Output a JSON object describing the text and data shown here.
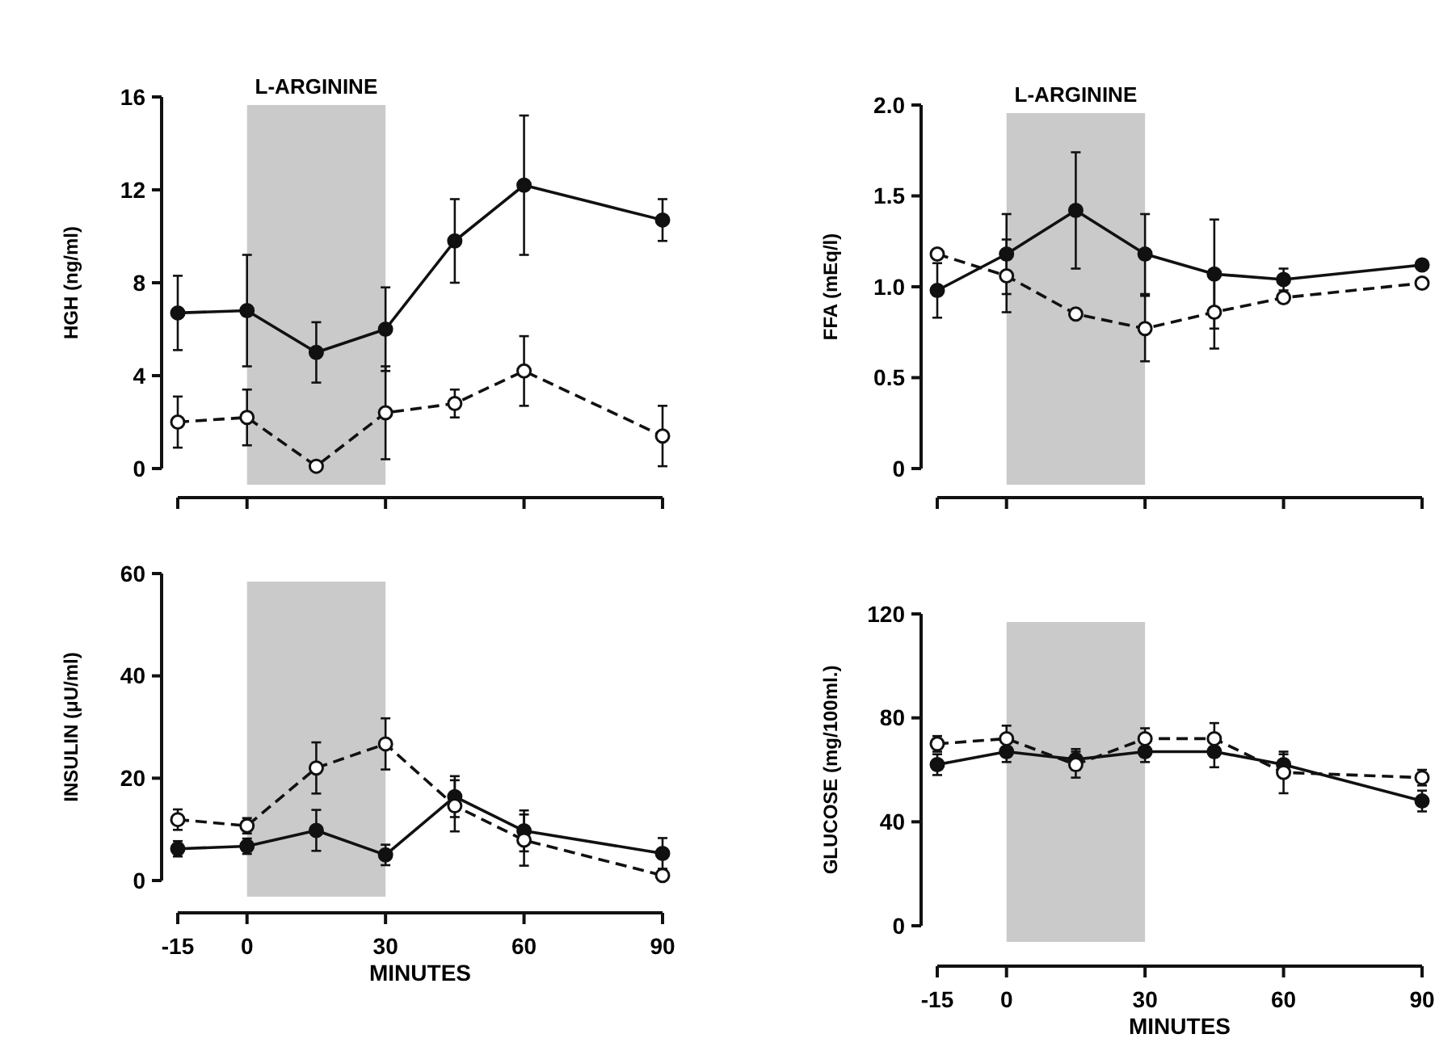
{
  "chart_data": [
    {
      "type": "line",
      "ylabel": "HGH (ng/ml)",
      "x": [
        -15,
        0,
        15,
        30,
        45,
        60,
        90
      ],
      "xlim": [
        -15,
        90
      ],
      "xticks": [
        -15,
        0,
        30,
        60,
        90
      ],
      "ylim": [
        0,
        16
      ],
      "yticks": [
        0,
        4,
        8,
        12,
        16
      ],
      "tick_labels": "y",
      "marker": "circle",
      "grid": false,
      "bands": [
        {
          "axis": "x",
          "from": 0,
          "to": 30,
          "label": "L-ARGININE",
          "color": "#bdbdbd"
        }
      ],
      "series": [
        {
          "color": "#111111",
          "line_style": "solid",
          "values": [
            6.7,
            6.8,
            5.0,
            6.0,
            9.8,
            12.2,
            10.7
          ],
          "errors": [
            1.6,
            2.4,
            1.3,
            1.8,
            1.8,
            3,
            0.9
          ]
        },
        {
          "color": "#111111",
          "line_style": "dashed",
          "values": [
            2.0,
            2.2,
            0.1,
            2.4,
            2.8,
            4.2,
            1.4
          ],
          "errors": [
            1.1,
            1.2,
            null,
            2,
            0.6,
            1.5,
            1.3
          ]
        }
      ]
    },
    {
      "type": "line",
      "ylabel": "FFA (mEq/l)",
      "x": [
        -15,
        0,
        15,
        30,
        45,
        60,
        90
      ],
      "xlim": [
        -15,
        90
      ],
      "xticks": [
        -15,
        0,
        30,
        60,
        90
      ],
      "ylim": [
        0,
        2
      ],
      "yticks": [
        0,
        {
          "value": 0.5,
          "label": "0.5"
        },
        {
          "value": 1,
          "label": "1.0"
        },
        {
          "value": 1.5,
          "label": "1.5"
        },
        {
          "value": 2,
          "label": "2.0"
        }
      ],
      "tick_labels": "y",
      "marker": "circle",
      "grid": false,
      "bands": [
        {
          "axis": "x",
          "from": 0,
          "to": 30,
          "label": "L-ARGININE",
          "color": "#bdbdbd"
        }
      ],
      "series": [
        {
          "color": "#111111",
          "line_style": "solid",
          "values": [
            0.98,
            1.18,
            1.42,
            1.18,
            1.07,
            1.04,
            1.12
          ],
          "errors": [
            0.15,
            0.22,
            0.32,
            0.22,
            0.3,
            0.06,
            null
          ]
        },
        {
          "color": "#111111",
          "line_style": "dashed",
          "values": [
            1.18,
            1.06,
            0.85,
            0.77,
            0.86,
            0.94,
            1.02
          ],
          "errors": [
            null,
            0.2,
            null,
            0.18,
            0.2,
            null,
            null
          ]
        }
      ]
    },
    {
      "type": "line",
      "ylabel": "INSULIN (μU/ml)",
      "xlabel": "MINUTES",
      "x": [
        -15,
        0,
        15,
        30,
        45,
        60,
        90
      ],
      "xlim": [
        -15,
        90
      ],
      "xticks": [
        -15,
        0,
        30,
        60,
        90
      ],
      "ylim": [
        0,
        60
      ],
      "yticks": [
        0,
        20,
        40,
        60
      ],
      "marker": "circle",
      "grid": false,
      "bands": [
        {
          "axis": "x",
          "from": 0,
          "to": 30,
          "color": "#bdbdbd"
        }
      ],
      "series": [
        {
          "color": "#111111",
          "line_style": "solid",
          "values": [
            6.2,
            6.7,
            9.8,
            5.0,
            16.4,
            9.7,
            5.3
          ],
          "errors": [
            1.5,
            1.5,
            4,
            2,
            4,
            4,
            3
          ]
        },
        {
          "color": "#111111",
          "line_style": "dashed",
          "values": [
            11.9,
            10.7,
            22,
            26.7,
            14.6,
            7.9,
            1.0
          ],
          "errors": [
            2,
            1.5,
            5,
            5,
            5,
            5,
            null
          ]
        }
      ]
    },
    {
      "type": "line",
      "ylabel": "GLUCOSE (mg/100ml.)",
      "xlabel": "MINUTES",
      "x": [
        -15,
        0,
        15,
        30,
        45,
        60,
        90
      ],
      "xlim": [
        -15,
        90
      ],
      "xticks": [
        -15,
        0,
        30,
        60,
        90
      ],
      "ylim": [
        0,
        120
      ],
      "yticks": [
        0,
        40,
        80,
        120
      ],
      "marker": "circle",
      "grid": false,
      "bands": [
        {
          "axis": "x",
          "from": 0,
          "to": 30,
          "color": "#bdbdbd"
        }
      ],
      "series": [
        {
          "color": "#111111",
          "line_style": "solid",
          "values": [
            62,
            67,
            64,
            67,
            67,
            62,
            48
          ],
          "errors": [
            4,
            4,
            4,
            4,
            6,
            4,
            4
          ]
        },
        {
          "color": "#111111",
          "line_style": "dashed",
          "values": [
            70,
            72,
            62,
            72,
            72,
            59,
            57
          ],
          "errors": [
            3,
            5,
            5,
            4,
            6,
            8,
            3
          ]
        }
      ]
    }
  ]
}
